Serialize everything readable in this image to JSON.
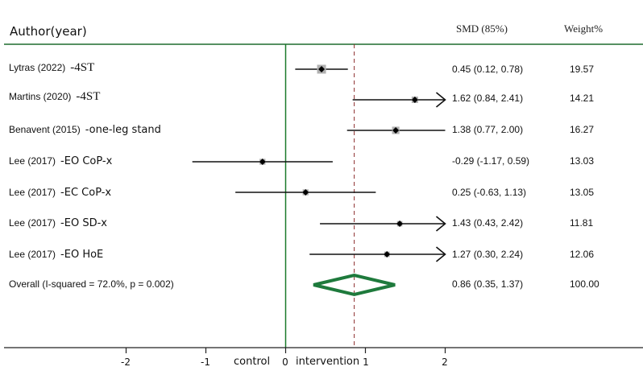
{
  "header": {
    "author_label": "Author(year)",
    "smd_label": "SMD (85%)",
    "weight_label": "Weight%"
  },
  "rows": [
    {
      "study": "Lytras (2022)",
      "outcome": "-4ST",
      "outcome_serif": true,
      "estimate_text": "0.45 (0.12, 0.78)",
      "weight": "19.57"
    },
    {
      "study": "Martins (2020)",
      "outcome": "-4ST",
      "outcome_serif": true,
      "estimate_text": "1.62 (0.84, 2.41)",
      "weight": "14.21"
    },
    {
      "study": "Benavent (2015)",
      "outcome": "-one-leg stand",
      "outcome_serif": false,
      "estimate_text": "1.38 (0.77, 2.00)",
      "weight": "16.27"
    },
    {
      "study": "Lee (2017)",
      "outcome": "-EO CoP-x",
      "outcome_serif": false,
      "estimate_text": "-0.29 (-1.17, 0.59)",
      "weight": "13.03"
    },
    {
      "study": "Lee (2017)",
      "outcome": "-EC CoP-x",
      "outcome_serif": false,
      "estimate_text": "0.25 (-0.63, 1.13)",
      "weight": "13.05"
    },
    {
      "study": "Lee (2017)",
      "outcome": "-EO SD-x",
      "outcome_serif": false,
      "estimate_text": "1.43 (0.43, 2.42)",
      "weight": "11.81"
    },
    {
      "study": "Lee (2017)",
      "outcome": "-EO HoE",
      "outcome_serif": false,
      "estimate_text": "1.27 (0.30, 2.24)",
      "weight": "12.06"
    }
  ],
  "overall": {
    "label": "Overall  (I-squared = 72.0%, p = 0.002)",
    "estimate_text": "0.86 (0.35, 1.37)",
    "weight": "100.00"
  },
  "axis": {
    "ticks": [
      "-2",
      "-1",
      "0",
      "1",
      "2"
    ],
    "left_label": "control",
    "right_label": "intervention"
  },
  "colors": {
    "rule_green": "#1e6b2e",
    "null_line": "#1a7a2a",
    "diamond": "#1e7a3c",
    "dashed_line": "#8b2a2a",
    "marker_box": "#b0b0b0"
  },
  "chart_data": {
    "type": "forest",
    "title": "",
    "xlabel": "control | intervention",
    "effect_measure": "SMD (85%)",
    "xlim": [
      -3.5,
      4.5
    ],
    "x_ticks": [
      -2,
      -1,
      0,
      1,
      2
    ],
    "clip_upper": 2.0,
    "null_value": 0,
    "studies": [
      {
        "label": "Lytras (2022) -4ST",
        "smd": 0.45,
        "lower": 0.12,
        "upper": 0.78,
        "weight": 19.57
      },
      {
        "label": "Martins (2020) -4ST",
        "smd": 1.62,
        "lower": 0.84,
        "upper": 2.41,
        "weight": 14.21
      },
      {
        "label": "Benavent (2015) -one-leg stand",
        "smd": 1.38,
        "lower": 0.77,
        "upper": 2.0,
        "weight": 16.27
      },
      {
        "label": "Lee (2017) -EO CoP-x",
        "smd": -0.29,
        "lower": -1.17,
        "upper": 0.59,
        "weight": 13.03
      },
      {
        "label": "Lee (2017) -EC CoP-x",
        "smd": 0.25,
        "lower": -0.63,
        "upper": 1.13,
        "weight": 13.05
      },
      {
        "label": "Lee (2017) -EO SD-x",
        "smd": 1.43,
        "lower": 0.43,
        "upper": 2.42,
        "weight": 11.81
      },
      {
        "label": "Lee (2017) -EO HoE",
        "smd": 1.27,
        "lower": 0.3,
        "upper": 2.24,
        "weight": 12.06
      }
    ],
    "overall": {
      "label": "Overall (I-squared = 72.0%, p = 0.002)",
      "smd": 0.86,
      "lower": 0.35,
      "upper": 1.37,
      "weight": 100.0,
      "i_squared": 72.0,
      "p": 0.002
    }
  }
}
